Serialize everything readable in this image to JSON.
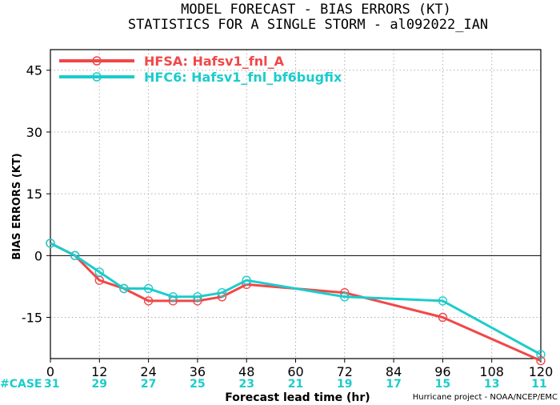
{
  "chart_data": {
    "type": "line",
    "title": "MODEL FORECAST - BIAS ERRORS (KT)",
    "subtitle": "STATISTICS FOR A SINGLE STORM - al092022_IAN",
    "xlabel": "Forecast lead time (hr)",
    "ylabel": "BIAS ERRORS (KT)",
    "xlim": [
      0,
      120
    ],
    "ylim": [
      -25,
      50
    ],
    "x_ticks": [
      0,
      12,
      24,
      36,
      48,
      60,
      72,
      84,
      96,
      108,
      120
    ],
    "y_ticks": [
      45,
      30,
      15,
      0,
      -15
    ],
    "grid": true,
    "legend_position": "top-left",
    "series": [
      {
        "name": "HFSA: Hafsv1_fnl_A",
        "color": "#f04848",
        "x": [
          0,
          6,
          12,
          18,
          24,
          30,
          36,
          42,
          48,
          72,
          96,
          120
        ],
        "y": [
          3,
          0,
          -6,
          -8,
          -11,
          -11,
          -11,
          -10,
          -7,
          -9,
          -15,
          -25.5
        ]
      },
      {
        "name": "HFC6: Hafsv1_fnl_bf6bugfix",
        "color": "#1ccccc",
        "x": [
          0,
          6,
          12,
          18,
          24,
          30,
          36,
          42,
          48,
          72,
          96,
          120
        ],
        "y": [
          3,
          0,
          -4,
          -8,
          -8,
          -10,
          -10,
          -9,
          -6,
          -10,
          -11,
          -24
        ]
      }
    ],
    "case_label": "#CASE",
    "case_hours": [
      0,
      12,
      24,
      36,
      48,
      60,
      72,
      84,
      96,
      108,
      120
    ],
    "case_counts": [
      31,
      29,
      27,
      25,
      23,
      21,
      19,
      17,
      15,
      13,
      11
    ],
    "case_color": "#1ccccc",
    "credit": "Hurricane project - NOAA/NCEP/EMC"
  }
}
